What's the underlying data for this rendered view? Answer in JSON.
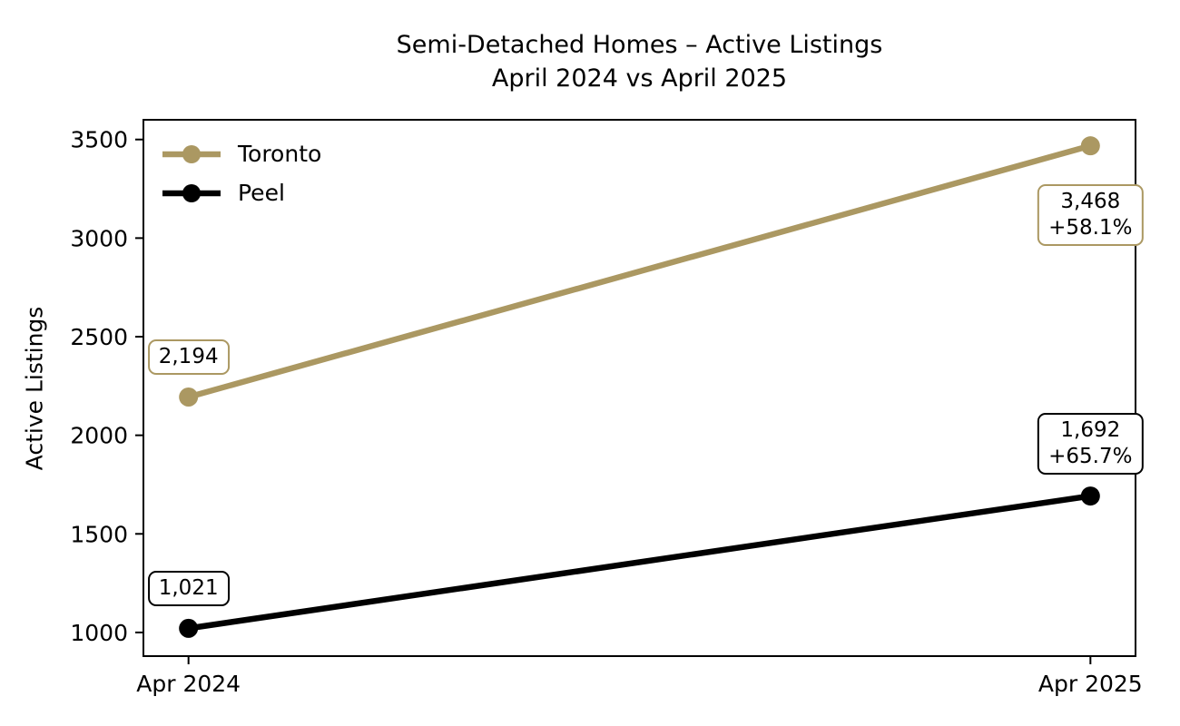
{
  "figure": {
    "background": "#ffffff"
  },
  "chart_data": {
    "type": "line",
    "title": "Semi-Detached Homes – Active Listings",
    "subtitle": "April 2024 vs April 2025",
    "ylabel": "Active Listings",
    "xlabel": "",
    "categories": [
      "Apr 2024",
      "Apr 2025"
    ],
    "series": [
      {
        "name": "Toronto",
        "color": "#ab9862",
        "values": [
          2194,
          3468
        ],
        "change_label": "+58.1%"
      },
      {
        "name": "Peel",
        "color": "#000000",
        "values": [
          1021,
          1692
        ],
        "change_label": "+65.7%"
      }
    ],
    "annotations": [
      {
        "series": "Toronto",
        "point": 0,
        "lines": [
          "2,194"
        ],
        "anchor": "above"
      },
      {
        "series": "Toronto",
        "point": 1,
        "lines": [
          "3,468",
          "+58.1%"
        ],
        "anchor": "below"
      },
      {
        "series": "Peel",
        "point": 0,
        "lines": [
          "1,021"
        ],
        "anchor": "above"
      },
      {
        "series": "Peel",
        "point": 1,
        "lines": [
          "1,692",
          "+65.7%"
        ],
        "anchor": "above"
      }
    ],
    "yticks": [
      1000,
      1500,
      2000,
      2500,
      3000,
      3500
    ],
    "ylim": [
      880,
      3600
    ],
    "legend_position": "upper-left",
    "grid": false,
    "axis_color": "#000000"
  }
}
